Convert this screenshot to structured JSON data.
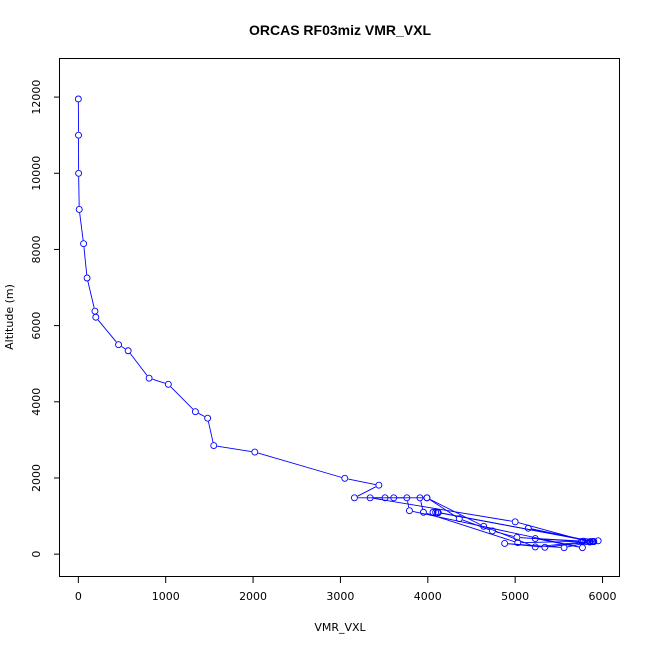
{
  "chart_data": {
    "type": "line",
    "title": "ORCAS RF03miz VMR_VXL",
    "xlabel": "VMR_VXL",
    "ylabel": "Altitude (m)",
    "xlim": [
      -210,
      6200
    ],
    "ylim": [
      -600,
      13000
    ],
    "xticks": [
      0,
      1000,
      2000,
      3000,
      4000,
      5000,
      6000
    ],
    "yticks": [
      0,
      2000,
      4000,
      6000,
      8000,
      10000,
      12000
    ],
    "grid": false,
    "marker": "open-circle",
    "color": "#0000ff",
    "series": [
      {
        "x": [
          0,
          2,
          3,
          10,
          60,
          100,
          190,
          200,
          460,
          570,
          810,
          1030,
          1340,
          1480,
          1550,
          2020,
          3050,
          3440,
          3160,
          3990,
          4360,
          4740,
          5020,
          5760,
          5860,
          5560,
          4880,
          5340,
          5850,
          5000,
          3340,
          3510,
          3610,
          3760,
          3790,
          5770,
          5230,
          5780,
          5030,
          3950,
          3910,
          3990,
          4640,
          5230,
          5810,
          5950,
          5880,
          5900,
          4120,
          4060,
          4090,
          4110,
          5890,
          5860,
          5150,
          5900
        ],
        "y": [
          11950,
          11000,
          10000,
          9050,
          8150,
          7250,
          6380,
          6220,
          5500,
          5340,
          4620,
          4460,
          3740,
          3570,
          2850,
          2680,
          1990,
          1810,
          1480,
          1480,
          930,
          610,
          440,
          330,
          320,
          170,
          280,
          180,
          320,
          850,
          1480,
          1480,
          1480,
          1480,
          1140,
          170,
          410,
          340,
          300,
          1100,
          1480,
          1480,
          730,
          190,
          330,
          350,
          330,
          330,
          1090,
          1100,
          1100,
          1100,
          330,
          330,
          680,
          330
        ]
      }
    ]
  }
}
